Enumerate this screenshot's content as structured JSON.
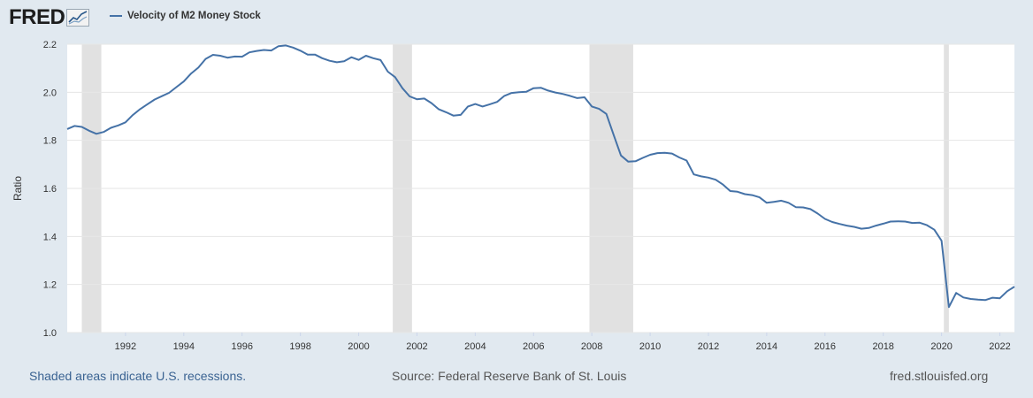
{
  "header": {
    "logo_text": "FRED",
    "legend_label": "Velocity of M2 Money Stock"
  },
  "footer": {
    "recession_note": "Shaded areas indicate U.S. recessions.",
    "source": "Source: Federal Reserve Bank of St. Louis",
    "site": "fred.stlouisfed.org"
  },
  "colors": {
    "series": "#4572a7",
    "recession": "#e1e1e1",
    "background": "#e1e9f0",
    "plot_background": "#ffffff"
  },
  "chart_data": {
    "type": "line",
    "title": "",
    "xlabel": "",
    "ylabel": "Ratio",
    "xlim": [
      1990.0,
      2022.5
    ],
    "ylim": [
      1.0,
      2.2
    ],
    "yticks": [
      1.0,
      1.2,
      1.4,
      1.6,
      1.8,
      2.0,
      2.2
    ],
    "ytick_labels": [
      "1.0",
      "1.2",
      "1.4",
      "1.6",
      "1.8",
      "2.0",
      "2.2"
    ],
    "xticks": [
      1992,
      1994,
      1996,
      1998,
      2000,
      2002,
      2004,
      2006,
      2008,
      2010,
      2012,
      2014,
      2016,
      2018,
      2020,
      2022
    ],
    "xtick_labels": [
      "1992",
      "1994",
      "1996",
      "1998",
      "2000",
      "2002",
      "2004",
      "2006",
      "2008",
      "2010",
      "2012",
      "2014",
      "2016",
      "2018",
      "2020",
      "2022"
    ],
    "grid": true,
    "legend_position": "top-left",
    "recessions": [
      [
        1990.5,
        1991.17
      ],
      [
        2001.17,
        2001.83
      ],
      [
        2007.92,
        2009.42
      ],
      [
        2020.08,
        2020.25
      ]
    ],
    "series": [
      {
        "name": "Velocity of M2 Money Stock",
        "x": [
          1990.0,
          1990.25,
          1990.5,
          1990.75,
          1991.0,
          1991.25,
          1991.5,
          1991.75,
          1992.0,
          1992.25,
          1992.5,
          1992.75,
          1993.0,
          1993.25,
          1993.5,
          1993.75,
          1994.0,
          1994.25,
          1994.5,
          1994.75,
          1995.0,
          1995.25,
          1995.5,
          1995.75,
          1996.0,
          1996.25,
          1996.5,
          1996.75,
          1997.0,
          1997.25,
          1997.5,
          1997.75,
          1998.0,
          1998.25,
          1998.5,
          1998.75,
          1999.0,
          1999.25,
          1999.5,
          1999.75,
          2000.0,
          2000.25,
          2000.5,
          2000.75,
          2001.0,
          2001.25,
          2001.5,
          2001.75,
          2002.0,
          2002.25,
          2002.5,
          2002.75,
          2003.0,
          2003.25,
          2003.5,
          2003.75,
          2004.0,
          2004.25,
          2004.5,
          2004.75,
          2005.0,
          2005.25,
          2005.5,
          2005.75,
          2006.0,
          2006.25,
          2006.5,
          2006.75,
          2007.0,
          2007.25,
          2007.5,
          2007.75,
          2008.0,
          2008.25,
          2008.5,
          2008.75,
          2009.0,
          2009.25,
          2009.5,
          2009.75,
          2010.0,
          2010.25,
          2010.5,
          2010.75,
          2011.0,
          2011.25,
          2011.5,
          2011.75,
          2012.0,
          2012.25,
          2012.5,
          2012.75,
          2013.0,
          2013.25,
          2013.5,
          2013.75,
          2014.0,
          2014.25,
          2014.5,
          2014.75,
          2015.0,
          2015.25,
          2015.5,
          2015.75,
          2016.0,
          2016.25,
          2016.5,
          2016.75,
          2017.0,
          2017.25,
          2017.5,
          2017.75,
          2018.0,
          2018.25,
          2018.5,
          2018.75,
          2019.0,
          2019.25,
          2019.5,
          2019.75,
          2020.0,
          2020.25,
          2020.5,
          2020.75,
          2021.0,
          2021.25,
          2021.5,
          2021.75,
          2022.0,
          2022.25,
          2022.5
        ],
        "values": [
          1.847,
          1.86,
          1.856,
          1.84,
          1.827,
          1.835,
          1.852,
          1.862,
          1.875,
          1.905,
          1.93,
          1.95,
          1.97,
          1.984,
          1.998,
          2.022,
          2.045,
          2.078,
          2.103,
          2.139,
          2.156,
          2.152,
          2.144,
          2.149,
          2.148,
          2.166,
          2.172,
          2.176,
          2.174,
          2.192,
          2.195,
          2.186,
          2.173,
          2.157,
          2.157,
          2.142,
          2.131,
          2.125,
          2.129,
          2.146,
          2.135,
          2.152,
          2.142,
          2.134,
          2.086,
          2.063,
          2.017,
          1.983,
          1.971,
          1.974,
          1.955,
          1.929,
          1.917,
          1.903,
          1.906,
          1.941,
          1.951,
          1.941,
          1.95,
          1.96,
          1.985,
          1.997,
          2.0,
          2.002,
          2.017,
          2.019,
          2.007,
          1.999,
          1.993,
          1.985,
          1.976,
          1.979,
          1.941,
          1.931,
          1.91,
          1.822,
          1.737,
          1.711,
          1.713,
          1.727,
          1.74,
          1.747,
          1.748,
          1.745,
          1.729,
          1.716,
          1.658,
          1.65,
          1.645,
          1.636,
          1.616,
          1.589,
          1.586,
          1.576,
          1.572,
          1.563,
          1.54,
          1.544,
          1.549,
          1.54,
          1.522,
          1.521,
          1.514,
          1.495,
          1.473,
          1.46,
          1.452,
          1.445,
          1.44,
          1.432,
          1.435,
          1.445,
          1.453,
          1.462,
          1.463,
          1.462,
          1.456,
          1.457,
          1.447,
          1.428,
          1.382,
          1.106,
          1.165,
          1.146,
          1.14,
          1.137,
          1.135,
          1.145,
          1.143,
          1.172,
          1.191
        ]
      }
    ]
  }
}
